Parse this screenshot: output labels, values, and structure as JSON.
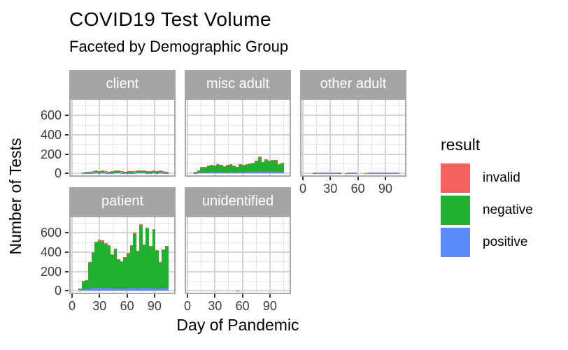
{
  "title": "COVID19 Test Volume",
  "subtitle": "Faceted by Demographic Group",
  "axes": {
    "x_title": "Day of Pandemic",
    "y_title": "Number of Tests",
    "x_ticks": [
      0,
      30,
      60,
      90
    ],
    "x_minor_ticks": [
      15,
      45,
      75,
      105
    ],
    "y_ticks": [
      0,
      200,
      400,
      600
    ],
    "y_minor_gridlines": [
      100,
      300,
      500,
      700
    ]
  },
  "legend": {
    "title": "result",
    "items": [
      {
        "label": "invalid",
        "color": "#f4615e"
      },
      {
        "label": "negative",
        "color": "#20b02e"
      },
      {
        "label": "positive",
        "color": "#5c8bfb"
      }
    ]
  },
  "chart_data": {
    "type": "bar",
    "stacked": true,
    "title": "COVID19 Test Volume",
    "subtitle": "Faceted by Demographic Group",
    "xlabel": "Day of Pandemic",
    "ylabel": "Number of Tests",
    "x_range": [
      -3,
      113
    ],
    "y_range": [
      0,
      775
    ],
    "grid": true,
    "legend_position": "right",
    "bin_start_day": 7,
    "bin_width_days": 3.5,
    "stack_order_bottom_to_top": [
      "positive",
      "negative",
      "invalid"
    ],
    "facets": [
      {
        "label": "client",
        "series": {
          "positive": [
            0,
            3,
            4,
            4,
            5,
            6,
            5,
            6,
            5,
            4,
            5,
            6,
            6,
            5,
            4,
            4,
            5,
            5,
            6,
            7,
            6,
            5,
            4,
            6,
            5,
            6,
            5,
            4
          ],
          "negative": [
            0,
            8,
            12,
            10,
            14,
            20,
            17,
            19,
            15,
            12,
            17,
            20,
            19,
            15,
            12,
            14,
            17,
            15,
            19,
            21,
            20,
            17,
            14,
            19,
            17,
            20,
            15,
            12
          ],
          "invalid": [
            0,
            1,
            2,
            1,
            3,
            4,
            3,
            3,
            2,
            2,
            3,
            4,
            3,
            2,
            2,
            2,
            3,
            2,
            3,
            4,
            4,
            3,
            2,
            3,
            3,
            4,
            2,
            2
          ]
        }
      },
      {
        "label": "misc adult",
        "series": {
          "positive": [
            3,
            6,
            10,
            11,
            12,
            13,
            12,
            14,
            13,
            11,
            12,
            14,
            12,
            10,
            14,
            12,
            13,
            15,
            16,
            18,
            22,
            16,
            19,
            17,
            18,
            19,
            13,
            15
          ],
          "negative": [
            10,
            21,
            50,
            54,
            60,
            66,
            62,
            74,
            69,
            58,
            67,
            71,
            60,
            54,
            74,
            66,
            72,
            78,
            86,
            103,
            140,
            96,
            120,
            105,
            111,
            114,
            78,
            86
          ],
          "invalid": [
            2,
            3,
            5,
            5,
            6,
            6,
            6,
            7,
            6,
            6,
            6,
            7,
            6,
            6,
            7,
            7,
            7,
            7,
            8,
            9,
            10,
            8,
            9,
            8,
            9,
            9,
            7,
            7
          ]
        }
      },
      {
        "label": "other adult",
        "series": {
          "positive": [
            0,
            1,
            2,
            1,
            2,
            2,
            2,
            3,
            2,
            1,
            0,
            1,
            2,
            2,
            1,
            0,
            0,
            1,
            2,
            2,
            3,
            2,
            2,
            2,
            2,
            2,
            1,
            2
          ],
          "negative": [
            0,
            4,
            5,
            5,
            7,
            5,
            6,
            8,
            5,
            4,
            0,
            3,
            5,
            7,
            5,
            0,
            0,
            3,
            7,
            5,
            8,
            6,
            8,
            5,
            7,
            6,
            5,
            5
          ],
          "invalid": [
            0,
            1,
            1,
            1,
            1,
            1,
            1,
            1,
            1,
            1,
            0,
            0,
            1,
            1,
            1,
            0,
            0,
            1,
            1,
            1,
            1,
            1,
            1,
            1,
            1,
            1,
            1,
            1
          ]
        }
      },
      {
        "label": "patient",
        "series": {
          "positive": [
            5,
            15,
            18,
            25,
            30,
            30,
            30,
            28,
            28,
            28,
            25,
            25,
            22,
            20,
            22,
            25,
            28,
            30,
            25,
            32,
            28,
            30,
            25,
            30,
            25,
            20,
            25,
            30
          ],
          "negative": [
            14,
            81,
            88,
            266,
            359,
            467,
            487,
            479,
            450,
            436,
            346,
            400,
            295,
            277,
            319,
            355,
            436,
            557,
            380,
            643,
            441,
            612,
            430,
            597,
            385,
            272,
            395,
            424
          ],
          "invalid": [
            1,
            4,
            4,
            9,
            11,
            13,
            13,
            13,
            12,
            11,
            9,
            10,
            8,
            8,
            9,
            10,
            11,
            13,
            10,
            15,
            11,
            13,
            10,
            13,
            10,
            8,
            10,
            11
          ]
        }
      },
      {
        "label": "unidentified",
        "series": {
          "positive": [
            0,
            0,
            0,
            0,
            0,
            0,
            0,
            0,
            0,
            0,
            0,
            0,
            0,
            0,
            0,
            0,
            0,
            0,
            0,
            0,
            0,
            0,
            0,
            0,
            0,
            0,
            0,
            0
          ],
          "negative": [
            0,
            0,
            0,
            0,
            0,
            0,
            0,
            0,
            0,
            0,
            0,
            0,
            0,
            4,
            0,
            0,
            0,
            0,
            0,
            0,
            0,
            0,
            0,
            0,
            0,
            0,
            0,
            0
          ],
          "invalid": [
            0,
            0,
            0,
            0,
            0,
            0,
            0,
            0,
            0,
            0,
            0,
            0,
            0,
            0,
            0,
            0,
            0,
            0,
            0,
            0,
            0,
            0,
            0,
            0,
            0,
            0,
            0,
            0
          ]
        }
      }
    ]
  },
  "theme": {
    "strip_background": "#a5a5a5",
    "strip_text_color": "#ffffff",
    "grid_major_color": "#d4d4d4",
    "grid_minor_color": "#e4e4e4",
    "panel_border_color": "#a9a9a9",
    "tick_label_color": "#3d3d3d"
  }
}
